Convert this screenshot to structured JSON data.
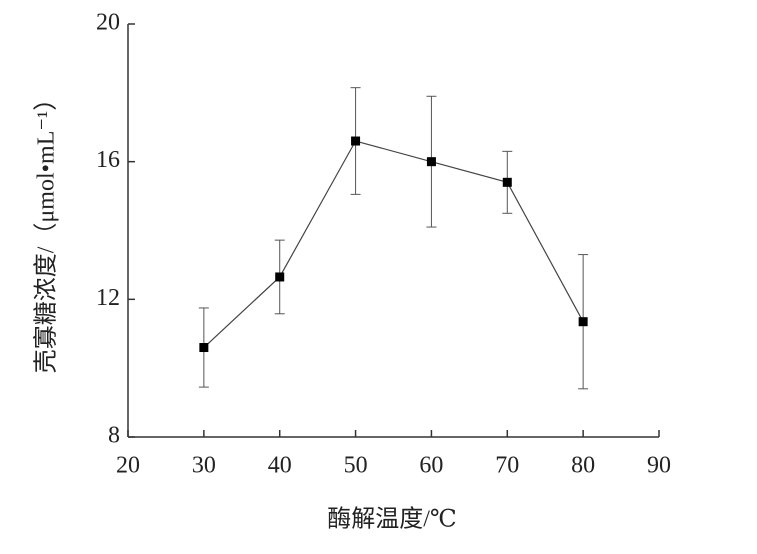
{
  "chart_data": {
    "type": "line",
    "xlabel": "酶解温度/℃",
    "ylabel": "壳寡糖浓度/（μmol•mL⁻¹）",
    "x": [
      30,
      40,
      50,
      60,
      70,
      80
    ],
    "series": [
      {
        "color": "#000000",
        "values": [
          10.6,
          12.65,
          16.6,
          16.0,
          15.4,
          11.35
        ],
        "errors": [
          1.15,
          1.07,
          1.55,
          1.9,
          0.9,
          1.95
        ]
      }
    ],
    "xlim": [
      20,
      90
    ],
    "xticks": [
      20,
      30,
      40,
      50,
      60,
      70,
      80,
      90
    ],
    "ylim": [
      8,
      20
    ],
    "yticks": [
      8,
      12,
      16,
      20
    ]
  }
}
